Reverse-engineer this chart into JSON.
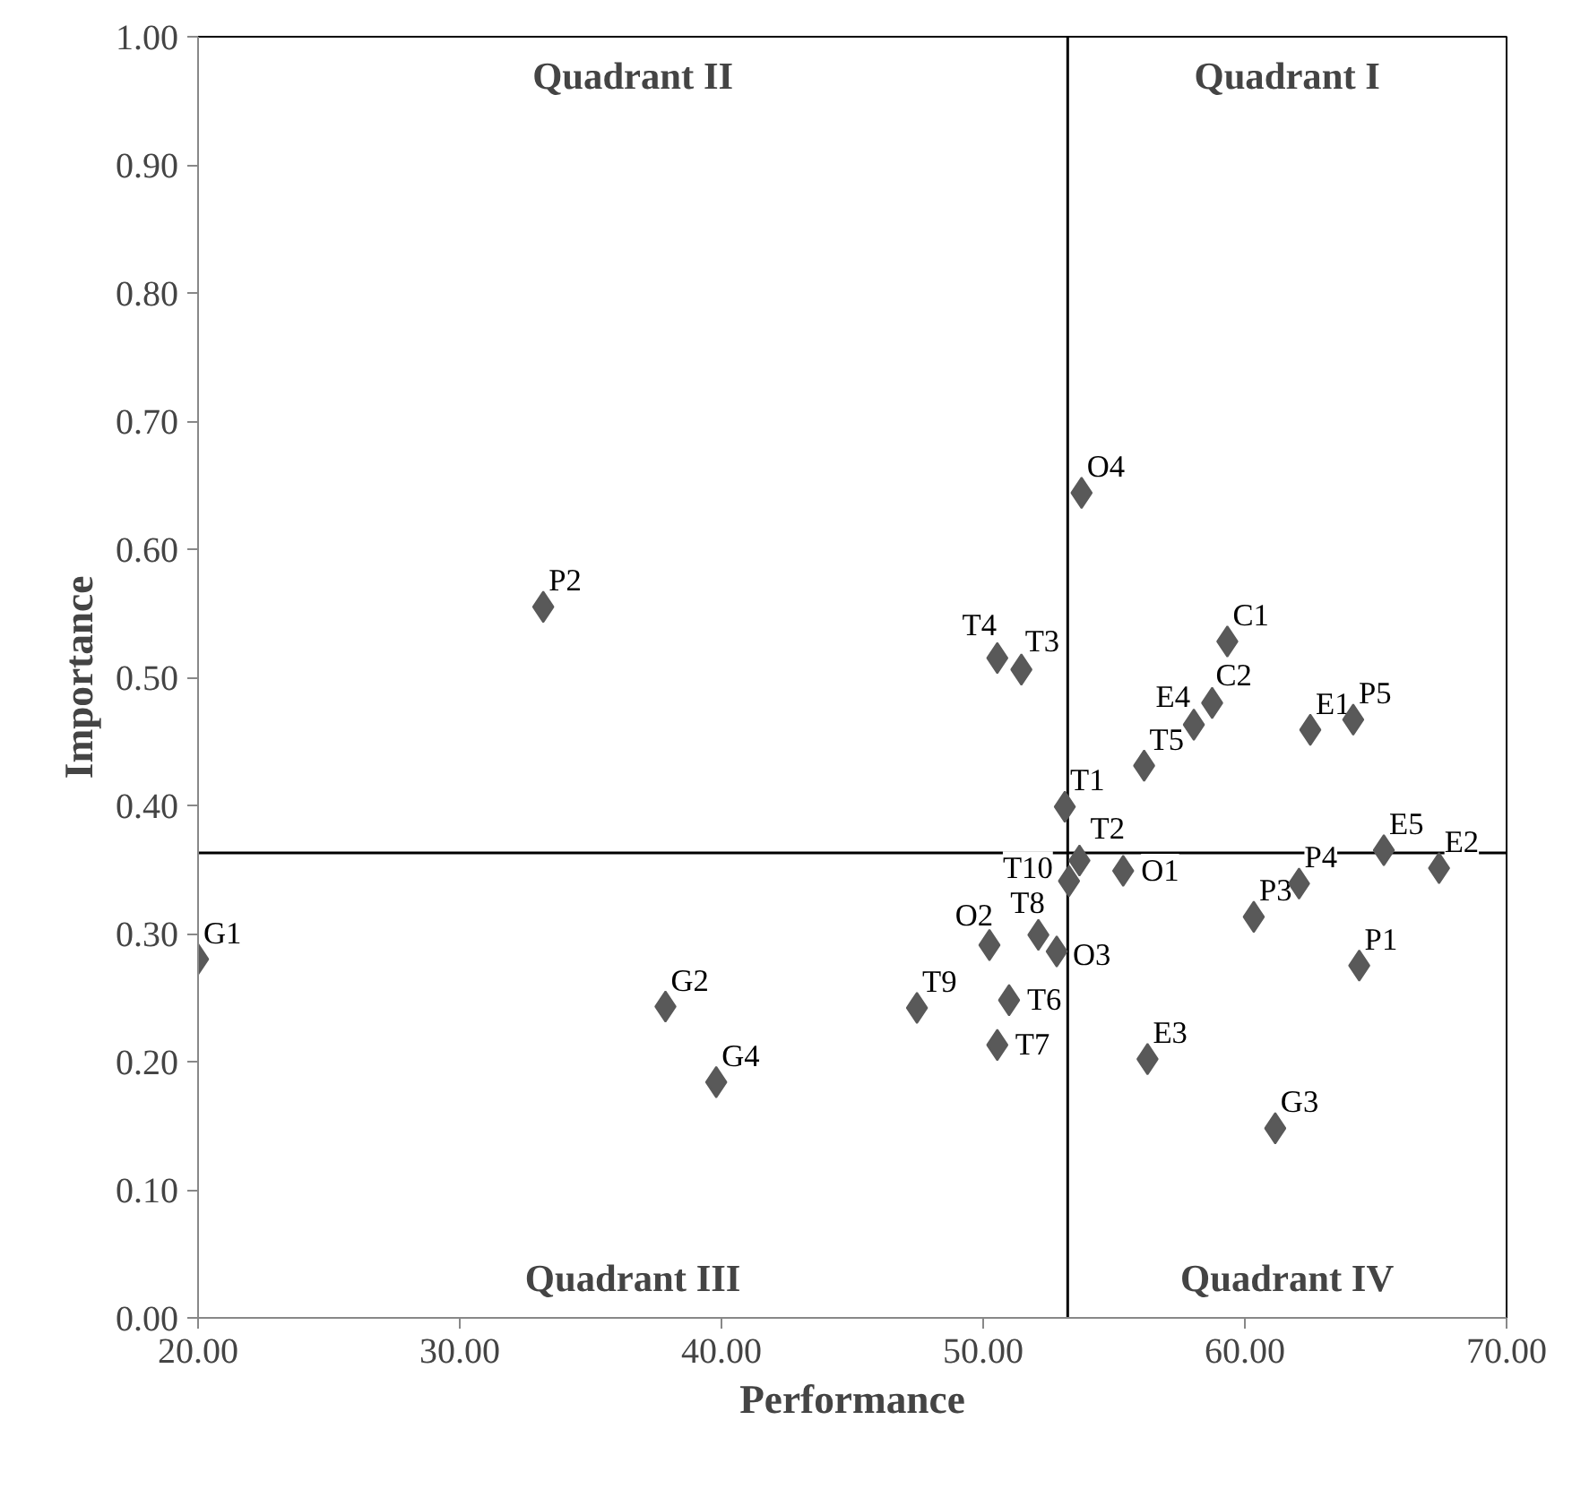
{
  "chart_data": {
    "type": "scatter",
    "xlabel": "Performance",
    "ylabel": "Importance",
    "x": [
      20.0,
      33.19,
      37.86,
      39.8,
      53.76,
      50.54,
      51.46,
      59.33,
      58.75,
      58.05,
      62.5,
      64.14,
      56.15,
      53.12,
      53.68,
      53.28,
      55.35,
      65.31,
      67.42,
      62.07,
      60.34,
      64.37,
      50.24,
      52.11,
      52.81,
      47.47,
      50.99,
      50.54,
      56.28,
      61.16
    ],
    "values": [
      0.28,
      0.555,
      0.243,
      0.184,
      0.644,
      0.515,
      0.506,
      0.528,
      0.48,
      0.463,
      0.459,
      0.467,
      0.431,
      0.399,
      0.357,
      0.341,
      0.349,
      0.365,
      0.351,
      0.339,
      0.313,
      0.275,
      0.291,
      0.299,
      0.286,
      0.242,
      0.248,
      0.213,
      0.202,
      0.148
    ],
    "value_labels": [
      "G1",
      "P2",
      "G2",
      "G4",
      "O4",
      "T4",
      "T3",
      "C1",
      "C2",
      "E4",
      "E1",
      "P5",
      "T5",
      "T1",
      "T2",
      "T10",
      "O1",
      "E5",
      "E2",
      "P4",
      "P3",
      "P1",
      "O2",
      "T8",
      "O3",
      "T9",
      "T6",
      "T7",
      "E3",
      "G3"
    ],
    "color": "#595959",
    "marker": "diamond",
    "grid": false,
    "legend": false,
    "xlim": [
      20,
      70
    ],
    "xticks": [
      {
        "value": 20,
        "label": "20.00"
      },
      {
        "value": 30,
        "label": "30.00"
      },
      {
        "value": 40,
        "label": "40.00"
      },
      {
        "value": 50,
        "label": "50.00"
      },
      {
        "value": 60,
        "label": "60.00"
      },
      {
        "value": 70,
        "label": "70.00"
      }
    ],
    "ylim": [
      0,
      1
    ],
    "yticks": [
      {
        "value": 0,
        "label": "0.00"
      },
      {
        "value": 0.1,
        "label": "0.10"
      },
      {
        "value": 0.2,
        "label": "0.20"
      },
      {
        "value": 0.3,
        "label": "0.30"
      },
      {
        "value": 0.4,
        "label": "0.40"
      },
      {
        "value": 0.5,
        "label": "0.50"
      },
      {
        "value": 0.6,
        "label": "0.60"
      },
      {
        "value": 0.7,
        "label": "0.70"
      },
      {
        "value": 0.8,
        "label": "0.80"
      },
      {
        "value": 0.9,
        "label": "0.90"
      },
      {
        "value": 1,
        "label": "1.00"
      }
    ],
    "ref_lines": [
      {
        "axis": "x",
        "value": 53.23,
        "color": "#000000"
      },
      {
        "axis": "y",
        "value": 0.363,
        "color": "#000000"
      }
    ],
    "annotations": [
      "Quadrant II",
      "Quadrant I",
      "Quadrant III",
      "Quadrant IV"
    ]
  }
}
